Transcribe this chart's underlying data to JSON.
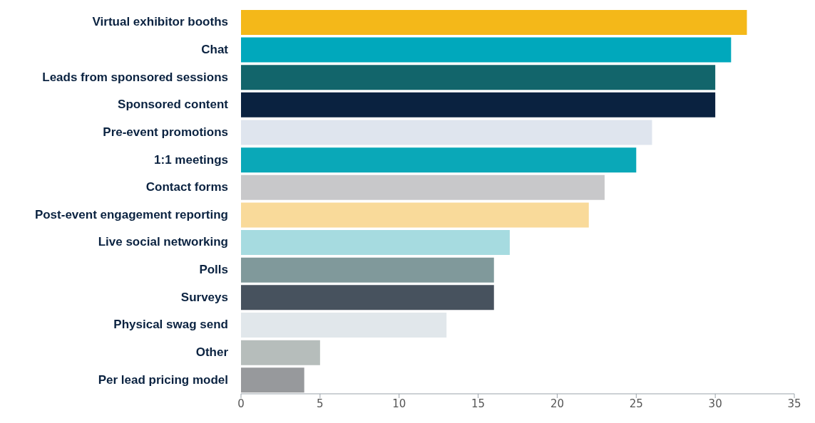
{
  "chart_data": {
    "type": "bar",
    "orientation": "horizontal",
    "categories": [
      "Virtual exhibitor booths",
      "Chat",
      "Leads from sponsored sessions",
      "Sponsored content",
      "Pre-event promotions",
      "1:1 meetings",
      "Contact forms",
      "Post-event engagement reporting",
      "Live social networking",
      "Polls",
      "Surveys",
      "Physical swag send",
      "Other",
      "Per lead pricing model"
    ],
    "values": [
      32,
      31,
      30,
      30,
      26,
      25,
      23,
      22,
      17,
      16,
      16,
      13,
      5,
      4
    ],
    "colors": [
      "#f4b819",
      "#00a8bc",
      "#12656b",
      "#0a2240",
      "#dfe5ee",
      "#0aa8b8",
      "#c8c8ca",
      "#f9da9a",
      "#a6dbe0",
      "#80999b",
      "#47525e",
      "#e1e7eb",
      "#b6bdbb",
      "#97999c"
    ],
    "xlim": [
      0,
      35
    ],
    "xticks": [
      0,
      5,
      10,
      15,
      20,
      25,
      30,
      35
    ],
    "grid": false,
    "legend": false
  }
}
